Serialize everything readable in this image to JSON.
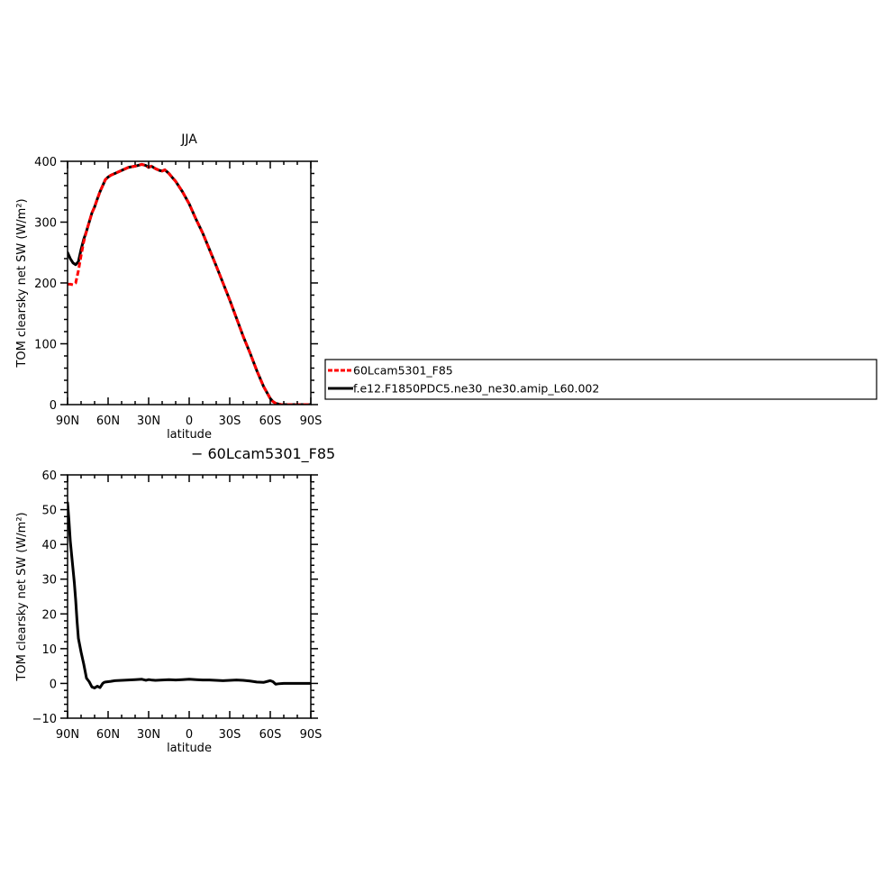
{
  "chart_data": [
    {
      "type": "line",
      "title": "JJA",
      "xlabel": "latitude",
      "ylabel": "TOM clearsky net SW (W/m²)",
      "xlim": [
        90,
        -90
      ],
      "ylim": [
        0,
        400
      ],
      "xticks": [
        90,
        60,
        30,
        0,
        -30,
        -60,
        -90
      ],
      "xtick_labels": [
        "90N",
        "60N",
        "30N",
        "0",
        "30S",
        "60S",
        "90S"
      ],
      "yticks": [
        0,
        100,
        200,
        300,
        400
      ],
      "ytick_labels": [
        "0",
        "100",
        "200",
        "300",
        "400"
      ],
      "legend": "right",
      "series": [
        {
          "name": "f.e12.F1850PDC5.ne30_ne30.amip_L60.002",
          "color": "#000000",
          "style": "solid",
          "x": [
            90,
            88,
            86,
            84,
            82,
            80,
            78,
            76,
            74,
            72,
            70,
            68,
            66,
            64,
            62,
            60,
            58,
            55,
            50,
            45,
            40,
            35,
            32,
            30,
            28,
            25,
            22,
            20,
            18,
            15,
            12,
            10,
            5,
            0,
            -5,
            -10,
            -15,
            -20,
            -25,
            -30,
            -35,
            -40,
            -45,
            -50,
            -55,
            -58,
            -60,
            -62,
            -64,
            -66,
            -68,
            -70,
            -72,
            -75,
            -80,
            -85,
            -90
          ],
          "y": [
            250,
            240,
            233,
            230,
            235,
            255,
            272,
            285,
            300,
            315,
            325,
            338,
            350,
            360,
            370,
            374,
            377,
            380,
            385,
            390,
            392,
            395,
            393,
            390,
            392,
            388,
            385,
            384,
            386,
            380,
            372,
            367,
            350,
            330,
            305,
            282,
            255,
            228,
            200,
            172,
            142,
            112,
            85,
            56,
            30,
            18,
            10,
            5,
            2,
            1,
            0,
            0,
            0,
            0,
            0,
            0,
            0
          ]
        },
        {
          "name": "60Lcam5301_F85",
          "color": "#ff0000",
          "style": "dashed",
          "x": [
            90,
            88,
            86,
            84,
            82,
            80,
            78,
            76,
            74,
            72,
            70,
            68,
            66,
            64,
            62,
            60,
            58,
            55,
            50,
            45,
            40,
            35,
            32,
            30,
            28,
            25,
            22,
            20,
            18,
            15,
            12,
            10,
            5,
            0,
            -5,
            -10,
            -15,
            -20,
            -25,
            -30,
            -35,
            -40,
            -45,
            -50,
            -55,
            -58,
            -60,
            -62,
            -64,
            -66,
            -68,
            -70,
            -72,
            -75,
            -80,
            -85,
            -90
          ],
          "y": [
            198,
            198,
            197,
            200,
            220,
            245,
            268,
            285,
            300,
            315,
            325,
            338,
            350,
            360,
            370,
            374,
            377,
            380,
            385,
            390,
            392,
            395,
            393,
            390,
            392,
            388,
            385,
            384,
            386,
            380,
            372,
            367,
            350,
            330,
            305,
            282,
            255,
            228,
            200,
            172,
            142,
            112,
            85,
            56,
            30,
            18,
            10,
            5,
            2,
            1,
            0,
            0,
            0,
            0,
            0,
            0,
            0
          ]
        }
      ]
    },
    {
      "type": "line",
      "title": "− 60Lcam5301_F85",
      "xlabel": "latitude",
      "ylabel": "TOM clearsky net SW (W/m²)",
      "xlim": [
        90,
        -90
      ],
      "ylim": [
        -10,
        60
      ],
      "xticks": [
        90,
        60,
        30,
        0,
        -30,
        -60,
        -90
      ],
      "xtick_labels": [
        "90N",
        "60N",
        "30N",
        "0",
        "30S",
        "60S",
        "90S"
      ],
      "yticks": [
        -10,
        0,
        10,
        20,
        30,
        40,
        50,
        60
      ],
      "ytick_labels": [
        "−10",
        "0",
        "10",
        "20",
        "30",
        "40",
        "50",
        "60"
      ],
      "series": [
        {
          "color": "#000000",
          "style": "solid",
          "x": [
            90,
            89,
            88,
            87,
            86,
            85,
            84,
            83,
            82,
            80,
            78,
            76,
            74,
            72,
            70,
            68,
            66,
            64,
            63,
            62,
            60,
            58,
            55,
            50,
            45,
            40,
            35,
            32,
            30,
            28,
            25,
            20,
            15,
            10,
            5,
            0,
            -5,
            -10,
            -15,
            -20,
            -25,
            -30,
            -35,
            -40,
            -45,
            -50,
            -55,
            -58,
            -60,
            -62,
            -64,
            -66,
            -70,
            -75,
            -80,
            -90
          ],
          "y": [
            52,
            47,
            41,
            37,
            33,
            29,
            24,
            18,
            13,
            9,
            5.5,
            1.5,
            0.5,
            -1,
            -1.3,
            -0.8,
            -1.2,
            0,
            0.3,
            0.4,
            0.5,
            0.6,
            0.8,
            0.9,
            1.0,
            1.1,
            1.2,
            0.9,
            1.1,
            1.0,
            0.9,
            1.0,
            1.1,
            1.0,
            1.1,
            1.2,
            1.1,
            1.0,
            1.0,
            0.9,
            0.8,
            0.9,
            1.0,
            0.9,
            0.7,
            0.4,
            0.3,
            0.6,
            0.8,
            0.5,
            -0.2,
            -0.1,
            0,
            0,
            0,
            0
          ]
        }
      ]
    }
  ]
}
